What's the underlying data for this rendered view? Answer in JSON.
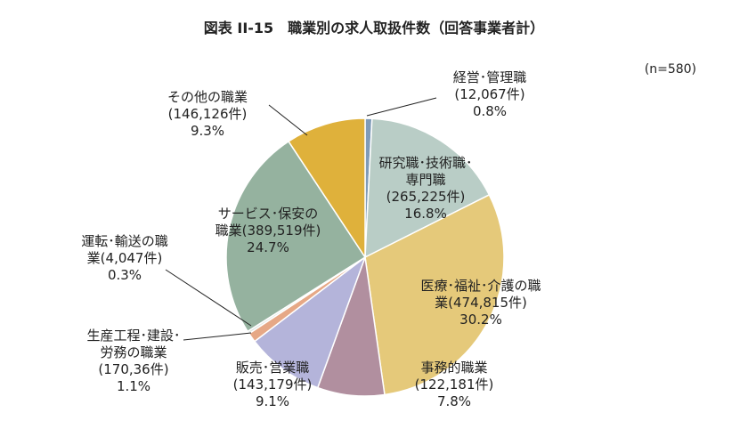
{
  "chart_data": {
    "type": "pie",
    "title": "図表 II-15　職業別の求人取扱件数（回答事業者計）",
    "note": "(n=580)",
    "slices": [
      {
        "name": "経営･管理職",
        "count": "(12,067件)",
        "percent": 0.8,
        "percent_label": "0.8%",
        "color": "#7f9bb8"
      },
      {
        "name": "研究職･技術職･専門職",
        "count": "(265,225件)",
        "percent": 16.8,
        "percent_label": "16.8%",
        "color": "#b9cdc6"
      },
      {
        "name": "医療･福祉･介護の職業",
        "count": "(474,815件)",
        "percent": 30.2,
        "percent_label": "30.2%",
        "color": "#e5c97a"
      },
      {
        "name": "事務的職業",
        "count": "(122,181件)",
        "percent": 7.8,
        "percent_label": "7.8%",
        "color": "#b18f9f"
      },
      {
        "name": "販売･営業職",
        "count": "(143,179件)",
        "percent": 9.1,
        "percent_label": "9.1%",
        "color": "#b4b4da"
      },
      {
        "name": "生産工程･建設･労務の職業",
        "count": "(170,36件)",
        "percent": 1.1,
        "percent_label": "1.1%",
        "color": "#e6a886"
      },
      {
        "name": "運転･輸送の職業",
        "count": "(4,047件)",
        "percent": 0.3,
        "percent_label": "0.3%",
        "color": "#dfe8e4"
      },
      {
        "name": "サービス･保安の職業",
        "count": "(389,519件)",
        "percent": 24.7,
        "percent_label": "24.7%",
        "color": "#95b29f"
      },
      {
        "name": "その他の職業",
        "count": "(146,126件)",
        "percent": 9.3,
        "percent_label": "9.3%",
        "color": "#dfb13b"
      }
    ]
  }
}
